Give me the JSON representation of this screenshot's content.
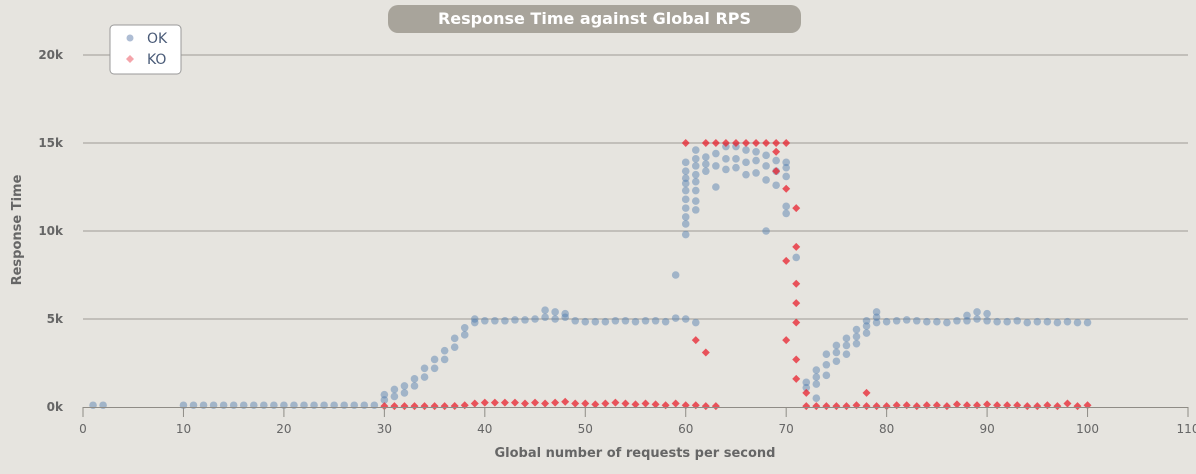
{
  "chart_data": {
    "type": "scatter",
    "title": "Response Time against Global RPS",
    "xlabel": "Global number of requests per second",
    "ylabel": "Response Time",
    "xlim": [
      0,
      110
    ],
    "ylim": [
      0,
      20000
    ],
    "x_ticks": [
      "0",
      "10",
      "20",
      "30",
      "40",
      "50",
      "60",
      "70",
      "80",
      "90",
      "100",
      "110"
    ],
    "y_ticks": [
      "0k",
      "5k",
      "10k",
      "15k",
      "20k"
    ],
    "grid": true,
    "legend_position": "top-left",
    "series": [
      {
        "name": "OK",
        "color": "#4d79ae",
        "marker": "circle",
        "points": [
          [
            1,
            100
          ],
          [
            2,
            100
          ],
          [
            10,
            100
          ],
          [
            11,
            100
          ],
          [
            12,
            100
          ],
          [
            13,
            100
          ],
          [
            14,
            100
          ],
          [
            15,
            100
          ],
          [
            16,
            100
          ],
          [
            17,
            100
          ],
          [
            18,
            100
          ],
          [
            19,
            100
          ],
          [
            20,
            100
          ],
          [
            21,
            100
          ],
          [
            22,
            100
          ],
          [
            23,
            100
          ],
          [
            24,
            100
          ],
          [
            25,
            100
          ],
          [
            26,
            100
          ],
          [
            27,
            100
          ],
          [
            28,
            100
          ],
          [
            29,
            100
          ],
          [
            30,
            400
          ],
          [
            30,
            700
          ],
          [
            31,
            600
          ],
          [
            31,
            1000
          ],
          [
            32,
            800
          ],
          [
            32,
            1200
          ],
          [
            33,
            1200
          ],
          [
            33,
            1600
          ],
          [
            34,
            1700
          ],
          [
            34,
            2200
          ],
          [
            35,
            2200
          ],
          [
            35,
            2700
          ],
          [
            36,
            2700
          ],
          [
            36,
            3200
          ],
          [
            37,
            3400
          ],
          [
            37,
            3900
          ],
          [
            38,
            4100
          ],
          [
            38,
            4500
          ],
          [
            39,
            4800
          ],
          [
            39,
            5000
          ],
          [
            40,
            4900
          ],
          [
            41,
            4900
          ],
          [
            42,
            4900
          ],
          [
            43,
            4950
          ],
          [
            44,
            4950
          ],
          [
            45,
            5000
          ],
          [
            46,
            5100
          ],
          [
            46,
            5500
          ],
          [
            47,
            5000
          ],
          [
            47,
            5400
          ],
          [
            48,
            5100
          ],
          [
            48,
            5300
          ],
          [
            49,
            4900
          ],
          [
            50,
            4850
          ],
          [
            51,
            4850
          ],
          [
            52,
            4850
          ],
          [
            53,
            4900
          ],
          [
            54,
            4900
          ],
          [
            55,
            4850
          ],
          [
            56,
            4900
          ],
          [
            57,
            4900
          ],
          [
            58,
            4850
          ],
          [
            59,
            5050
          ],
          [
            60,
            5000
          ],
          [
            61,
            4800
          ],
          [
            59,
            7500
          ],
          [
            60,
            9800
          ],
          [
            60,
            10400
          ],
          [
            60,
            10800
          ],
          [
            60,
            11300
          ],
          [
            60,
            11800
          ],
          [
            60,
            12300
          ],
          [
            60,
            12700
          ],
          [
            60,
            13000
          ],
          [
            60,
            13400
          ],
          [
            60,
            13900
          ],
          [
            61,
            11200
          ],
          [
            61,
            11700
          ],
          [
            61,
            12300
          ],
          [
            61,
            12800
          ],
          [
            61,
            13200
          ],
          [
            61,
            13700
          ],
          [
            61,
            14100
          ],
          [
            61,
            14600
          ],
          [
            62,
            13400
          ],
          [
            62,
            13800
          ],
          [
            62,
            14200
          ],
          [
            63,
            12500
          ],
          [
            63,
            13700
          ],
          [
            63,
            14400
          ],
          [
            64,
            13500
          ],
          [
            64,
            14100
          ],
          [
            64,
            14800
          ],
          [
            65,
            13600
          ],
          [
            65,
            14100
          ],
          [
            65,
            14800
          ],
          [
            66,
            13200
          ],
          [
            66,
            13900
          ],
          [
            66,
            14600
          ],
          [
            67,
            13300
          ],
          [
            67,
            14000
          ],
          [
            67,
            14500
          ],
          [
            68,
            10000
          ],
          [
            68,
            12900
          ],
          [
            68,
            13700
          ],
          [
            68,
            14300
          ],
          [
            69,
            12600
          ],
          [
            69,
            13400
          ],
          [
            69,
            14000
          ],
          [
            70,
            11000
          ],
          [
            70,
            11400
          ],
          [
            70,
            13100
          ],
          [
            70,
            13600
          ],
          [
            70,
            13900
          ],
          [
            71,
            8500
          ],
          [
            72,
            1100
          ],
          [
            72,
            1400
          ],
          [
            73,
            500
          ],
          [
            73,
            1300
          ],
          [
            73,
            1700
          ],
          [
            73,
            2100
          ],
          [
            74,
            1800
          ],
          [
            74,
            2400
          ],
          [
            74,
            3000
          ],
          [
            75,
            2600
          ],
          [
            75,
            3100
          ],
          [
            75,
            3500
          ],
          [
            76,
            3000
          ],
          [
            76,
            3500
          ],
          [
            76,
            3900
          ],
          [
            77,
            3600
          ],
          [
            77,
            4000
          ],
          [
            77,
            4400
          ],
          [
            78,
            4200
          ],
          [
            78,
            4600
          ],
          [
            78,
            4900
          ],
          [
            79,
            4800
          ],
          [
            79,
            5100
          ],
          [
            79,
            5400
          ],
          [
            80,
            4850
          ],
          [
            81,
            4900
          ],
          [
            82,
            4950
          ],
          [
            83,
            4900
          ],
          [
            84,
            4850
          ],
          [
            85,
            4850
          ],
          [
            86,
            4800
          ],
          [
            87,
            4900
          ],
          [
            88,
            4900
          ],
          [
            88,
            5200
          ],
          [
            89,
            5000
          ],
          [
            89,
            5400
          ],
          [
            90,
            4900
          ],
          [
            90,
            5300
          ],
          [
            91,
            4850
          ],
          [
            92,
            4850
          ],
          [
            93,
            4900
          ],
          [
            94,
            4800
          ],
          [
            95,
            4850
          ],
          [
            96,
            4850
          ],
          [
            97,
            4800
          ],
          [
            98,
            4850
          ],
          [
            99,
            4800
          ],
          [
            100,
            4800
          ]
        ]
      },
      {
        "name": "KO",
        "color": "#e8212e",
        "marker": "diamond",
        "points": [
          [
            30,
            50
          ],
          [
            31,
            50
          ],
          [
            32,
            50
          ],
          [
            33,
            50
          ],
          [
            34,
            50
          ],
          [
            35,
            50
          ],
          [
            36,
            50
          ],
          [
            37,
            60
          ],
          [
            38,
            100
          ],
          [
            39,
            200
          ],
          [
            40,
            250
          ],
          [
            41,
            250
          ],
          [
            42,
            250
          ],
          [
            43,
            250
          ],
          [
            44,
            200
          ],
          [
            45,
            250
          ],
          [
            46,
            200
          ],
          [
            47,
            250
          ],
          [
            48,
            300
          ],
          [
            49,
            200
          ],
          [
            50,
            200
          ],
          [
            51,
            150
          ],
          [
            52,
            200
          ],
          [
            53,
            250
          ],
          [
            54,
            200
          ],
          [
            55,
            150
          ],
          [
            56,
            200
          ],
          [
            57,
            150
          ],
          [
            58,
            100
          ],
          [
            59,
            200
          ],
          [
            60,
            100
          ],
          [
            61,
            100
          ],
          [
            62,
            50
          ],
          [
            63,
            50
          ],
          [
            60,
            15000
          ],
          [
            61,
            3800
          ],
          [
            62,
            3100
          ],
          [
            62,
            15000
          ],
          [
            63,
            15000
          ],
          [
            64,
            15000
          ],
          [
            65,
            15000
          ],
          [
            66,
            15000
          ],
          [
            67,
            15000
          ],
          [
            68,
            15000
          ],
          [
            69,
            15000
          ],
          [
            70,
            15000
          ],
          [
            69,
            14500
          ],
          [
            69,
            13400
          ],
          [
            70,
            12400
          ],
          [
            70,
            8300
          ],
          [
            71,
            11300
          ],
          [
            71,
            9100
          ],
          [
            71,
            7000
          ],
          [
            71,
            5900
          ],
          [
            71,
            4800
          ],
          [
            71,
            2700
          ],
          [
            71,
            1600
          ],
          [
            70,
            3800
          ],
          [
            72,
            800
          ],
          [
            72,
            50
          ],
          [
            73,
            50
          ],
          [
            74,
            50
          ],
          [
            75,
            50
          ],
          [
            76,
            50
          ],
          [
            77,
            100
          ],
          [
            78,
            50
          ],
          [
            78,
            800
          ],
          [
            79,
            50
          ],
          [
            80,
            50
          ],
          [
            81,
            100
          ],
          [
            82,
            100
          ],
          [
            83,
            50
          ],
          [
            84,
            100
          ],
          [
            85,
            100
          ],
          [
            86,
            50
          ],
          [
            87,
            150
          ],
          [
            88,
            100
          ],
          [
            89,
            100
          ],
          [
            90,
            150
          ],
          [
            91,
            100
          ],
          [
            92,
            100
          ],
          [
            93,
            100
          ],
          [
            94,
            50
          ],
          [
            95,
            50
          ],
          [
            96,
            100
          ],
          [
            97,
            50
          ],
          [
            98,
            200
          ],
          [
            99,
            50
          ],
          [
            100,
            100
          ]
        ]
      }
    ]
  }
}
